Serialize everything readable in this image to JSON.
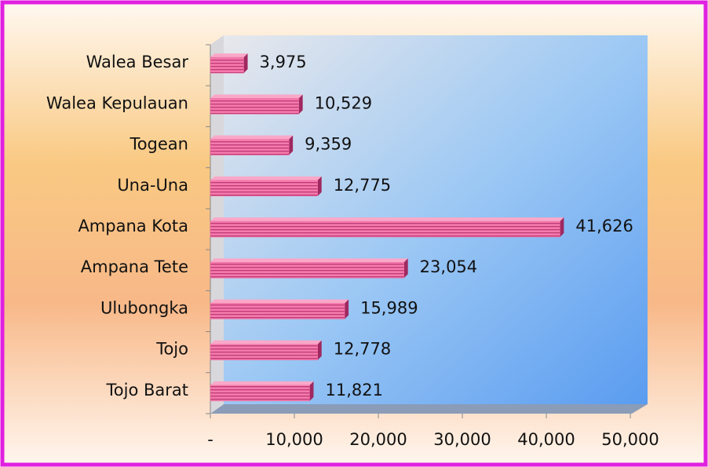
{
  "chart_data": {
    "type": "bar",
    "orientation": "horizontal",
    "categories": [
      "Walea Besar",
      "Walea Kepulauan",
      "Togean",
      "Una-Una",
      "Ampana Kota",
      "Ampana Tete",
      "Ulubongka",
      "Tojo",
      "Tojo Barat"
    ],
    "values": [
      3975,
      10529,
      9359,
      12775,
      41626,
      23054,
      15989,
      12778,
      11821
    ],
    "value_labels": [
      "3,975",
      "10,529",
      "9,359",
      "12,775",
      "41,626",
      "23,054",
      "15,989",
      "12,778",
      "11,821"
    ],
    "color": "#f06aa0",
    "xlim": [
      0,
      50000
    ],
    "xticks": [
      {
        "value": 0,
        "label": "-"
      },
      {
        "value": 10000,
        "label": "10,000"
      },
      {
        "value": 20000,
        "label": "20,000"
      },
      {
        "value": 30000,
        "label": "30,000"
      },
      {
        "value": 40000,
        "label": "40,000"
      },
      {
        "value": 50000,
        "label": "50,000"
      }
    ]
  }
}
